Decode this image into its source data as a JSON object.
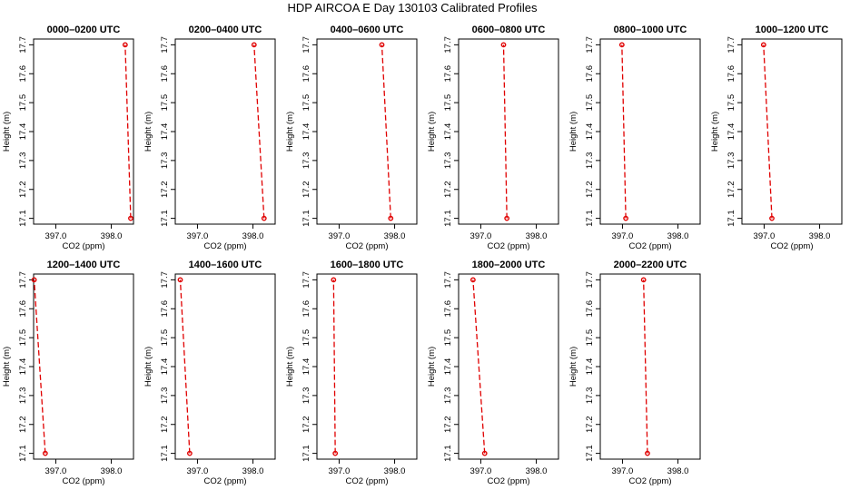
{
  "title": "HDP AIRCOA E  Day 130103  Calibrated Profiles",
  "colors": {
    "series": "#e00000",
    "frame": "#000000",
    "background": "#ffffff"
  },
  "chart_data": [
    {
      "type": "line",
      "title": "0000–0200 UTC",
      "xlabel": "CO2 (ppm)",
      "ylabel": "Height (m)",
      "xlim": [
        396.6,
        398.4
      ],
      "ylim": [
        17.08,
        17.72
      ],
      "xticks": [
        397.0,
        398.0
      ],
      "xtick_labels": [
        "397.0",
        "398.0"
      ],
      "yticks": [
        17.1,
        17.2,
        17.3,
        17.4,
        17.5,
        17.6,
        17.7
      ],
      "ytick_labels": [
        "17.1",
        "17.2",
        "17.3",
        "17.4",
        "17.5",
        "17.6",
        "17.7"
      ],
      "x": [
        398.35,
        398.25
      ],
      "y": [
        17.1,
        17.7
      ]
    },
    {
      "type": "line",
      "title": "0200–0400 UTC",
      "xlabel": "CO2 (ppm)",
      "ylabel": "Height (m)",
      "xlim": [
        396.6,
        398.4
      ],
      "ylim": [
        17.08,
        17.72
      ],
      "xticks": [
        397.0,
        398.0
      ],
      "xtick_labels": [
        "397.0",
        "398.0"
      ],
      "yticks": [
        17.1,
        17.2,
        17.3,
        17.4,
        17.5,
        17.6,
        17.7
      ],
      "ytick_labels": [
        "17.1",
        "17.2",
        "17.3",
        "17.4",
        "17.5",
        "17.6",
        "17.7"
      ],
      "x": [
        398.2,
        398.02
      ],
      "y": [
        17.1,
        17.7
      ]
    },
    {
      "type": "line",
      "title": "0400–0600 UTC",
      "xlabel": "CO2 (ppm)",
      "ylabel": "Height (m)",
      "xlim": [
        396.6,
        398.4
      ],
      "ylim": [
        17.08,
        17.72
      ],
      "xticks": [
        397.0,
        398.0
      ],
      "xtick_labels": [
        "397.0",
        "398.0"
      ],
      "yticks": [
        17.1,
        17.2,
        17.3,
        17.4,
        17.5,
        17.6,
        17.7
      ],
      "ytick_labels": [
        "17.1",
        "17.2",
        "17.3",
        "17.4",
        "17.5",
        "17.6",
        "17.7"
      ],
      "x": [
        397.93,
        397.77
      ],
      "y": [
        17.1,
        17.7
      ]
    },
    {
      "type": "line",
      "title": "0600–0800 UTC",
      "xlabel": "CO2 (ppm)",
      "ylabel": "Height (m)",
      "xlim": [
        396.6,
        398.4
      ],
      "ylim": [
        17.08,
        17.72
      ],
      "xticks": [
        397.0,
        398.0
      ],
      "xtick_labels": [
        "397.0",
        "398.0"
      ],
      "yticks": [
        17.1,
        17.2,
        17.3,
        17.4,
        17.5,
        17.6,
        17.7
      ],
      "ytick_labels": [
        "17.1",
        "17.2",
        "17.3",
        "17.4",
        "17.5",
        "17.6",
        "17.7"
      ],
      "x": [
        397.47,
        397.41
      ],
      "y": [
        17.1,
        17.7
      ]
    },
    {
      "type": "line",
      "title": "0800–1000 UTC",
      "xlabel": "CO2 (ppm)",
      "ylabel": "Height (m)",
      "xlim": [
        396.6,
        398.4
      ],
      "ylim": [
        17.08,
        17.72
      ],
      "xticks": [
        397.0,
        398.0
      ],
      "xtick_labels": [
        "397.0",
        "398.0"
      ],
      "yticks": [
        17.1,
        17.2,
        17.3,
        17.4,
        17.5,
        17.6,
        17.7
      ],
      "ytick_labels": [
        "17.1",
        "17.2",
        "17.3",
        "17.4",
        "17.5",
        "17.6",
        "17.7"
      ],
      "x": [
        397.06,
        396.99
      ],
      "y": [
        17.1,
        17.7
      ]
    },
    {
      "type": "line",
      "title": "1000–1200 UTC",
      "xlabel": "CO2 (ppm)",
      "ylabel": "Height (m)",
      "xlim": [
        396.6,
        398.4
      ],
      "ylim": [
        17.08,
        17.72
      ],
      "xticks": [
        397.0,
        398.0
      ],
      "xtick_labels": [
        "397.0",
        "398.0"
      ],
      "yticks": [
        17.1,
        17.2,
        17.3,
        17.4,
        17.5,
        17.6,
        17.7
      ],
      "ytick_labels": [
        "17.1",
        "17.2",
        "17.3",
        "17.4",
        "17.5",
        "17.6",
        "17.7"
      ],
      "x": [
        397.14,
        396.99
      ],
      "y": [
        17.1,
        17.7
      ]
    },
    {
      "type": "line",
      "title": "1200–1400 UTC",
      "xlabel": "CO2 (ppm)",
      "ylabel": "Height (m)",
      "xlim": [
        396.6,
        398.4
      ],
      "ylim": [
        17.08,
        17.72
      ],
      "xticks": [
        397.0,
        398.0
      ],
      "xtick_labels": [
        "397.0",
        "398.0"
      ],
      "yticks": [
        17.1,
        17.2,
        17.3,
        17.4,
        17.5,
        17.6,
        17.7
      ],
      "ytick_labels": [
        "17.1",
        "17.2",
        "17.3",
        "17.4",
        "17.5",
        "17.6",
        "17.7"
      ],
      "x": [
        396.81,
        396.61
      ],
      "y": [
        17.1,
        17.7
      ]
    },
    {
      "type": "line",
      "title": "1400–1600 UTC",
      "xlabel": "CO2 (ppm)",
      "ylabel": "Height (m)",
      "xlim": [
        396.6,
        398.4
      ],
      "ylim": [
        17.08,
        17.72
      ],
      "xticks": [
        397.0,
        398.0
      ],
      "xtick_labels": [
        "397.0",
        "398.0"
      ],
      "yticks": [
        17.1,
        17.2,
        17.3,
        17.4,
        17.5,
        17.6,
        17.7
      ],
      "ytick_labels": [
        "17.1",
        "17.2",
        "17.3",
        "17.4",
        "17.5",
        "17.6",
        "17.7"
      ],
      "x": [
        396.86,
        396.69
      ],
      "y": [
        17.1,
        17.7
      ]
    },
    {
      "type": "line",
      "title": "1600–1800 UTC",
      "xlabel": "CO2 (ppm)",
      "ylabel": "Height (m)",
      "xlim": [
        396.6,
        398.4
      ],
      "ylim": [
        17.08,
        17.72
      ],
      "xticks": [
        397.0,
        398.0
      ],
      "xtick_labels": [
        "397.0",
        "398.0"
      ],
      "yticks": [
        17.1,
        17.2,
        17.3,
        17.4,
        17.5,
        17.6,
        17.7
      ],
      "ytick_labels": [
        "17.1",
        "17.2",
        "17.3",
        "17.4",
        "17.5",
        "17.6",
        "17.7"
      ],
      "x": [
        396.93,
        396.9
      ],
      "y": [
        17.1,
        17.7
      ]
    },
    {
      "type": "line",
      "title": "1800–2000 UTC",
      "xlabel": "CO2 (ppm)",
      "ylabel": "Height (m)",
      "xlim": [
        396.6,
        398.4
      ],
      "ylim": [
        17.08,
        17.72
      ],
      "xticks": [
        397.0,
        398.0
      ],
      "xtick_labels": [
        "397.0",
        "398.0"
      ],
      "yticks": [
        17.1,
        17.2,
        17.3,
        17.4,
        17.5,
        17.6,
        17.7
      ],
      "ytick_labels": [
        "17.1",
        "17.2",
        "17.3",
        "17.4",
        "17.5",
        "17.6",
        "17.7"
      ],
      "x": [
        397.07,
        396.86
      ],
      "y": [
        17.1,
        17.7
      ]
    },
    {
      "type": "line",
      "title": "2000–2200 UTC",
      "xlabel": "CO2 (ppm)",
      "ylabel": "Height (m)",
      "xlim": [
        396.6,
        398.4
      ],
      "ylim": [
        17.08,
        17.72
      ],
      "xticks": [
        397.0,
        398.0
      ],
      "xtick_labels": [
        "397.0",
        "398.0"
      ],
      "yticks": [
        17.1,
        17.2,
        17.3,
        17.4,
        17.5,
        17.6,
        17.7
      ],
      "ytick_labels": [
        "17.1",
        "17.2",
        "17.3",
        "17.4",
        "17.5",
        "17.6",
        "17.7"
      ],
      "x": [
        397.45,
        397.38
      ],
      "y": [
        17.1,
        17.7
      ]
    }
  ]
}
